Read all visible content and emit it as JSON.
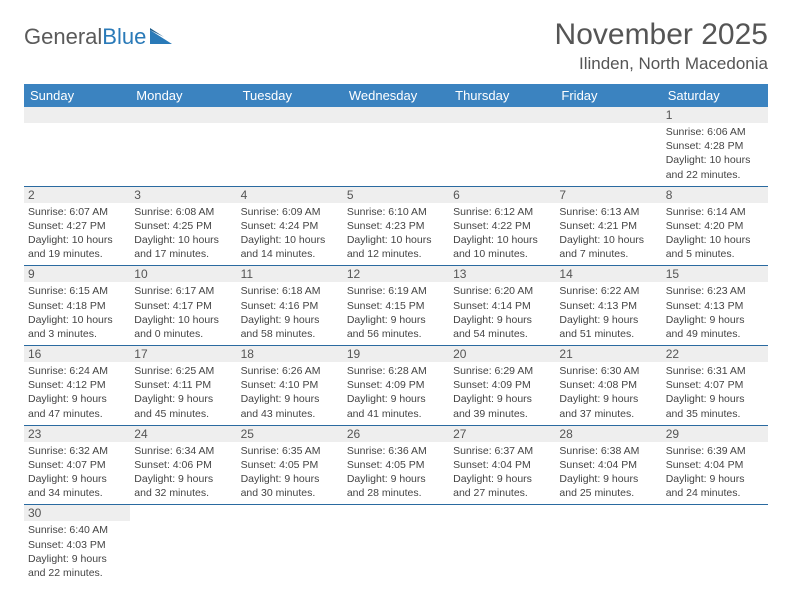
{
  "logo": {
    "part1": "General",
    "part2": "Blue"
  },
  "header": {
    "month_title": "November 2025",
    "location": "Ilinden, North Macedonia"
  },
  "day_headers": [
    "Sunday",
    "Monday",
    "Tuesday",
    "Wednesday",
    "Thursday",
    "Friday",
    "Saturday"
  ],
  "header_bg": "#3b83c0",
  "header_fg": "#ffffff",
  "daynum_bg": "#eeeeee",
  "border_color": "#2a6aa0",
  "weeks": [
    [
      {
        "n": "",
        "sr": "",
        "ss": "",
        "dl": ""
      },
      {
        "n": "",
        "sr": "",
        "ss": "",
        "dl": ""
      },
      {
        "n": "",
        "sr": "",
        "ss": "",
        "dl": ""
      },
      {
        "n": "",
        "sr": "",
        "ss": "",
        "dl": ""
      },
      {
        "n": "",
        "sr": "",
        "ss": "",
        "dl": ""
      },
      {
        "n": "",
        "sr": "",
        "ss": "",
        "dl": ""
      },
      {
        "n": "1",
        "sr": "Sunrise: 6:06 AM",
        "ss": "Sunset: 4:28 PM",
        "dl": "Daylight: 10 hours and 22 minutes."
      }
    ],
    [
      {
        "n": "2",
        "sr": "Sunrise: 6:07 AM",
        "ss": "Sunset: 4:27 PM",
        "dl": "Daylight: 10 hours and 19 minutes."
      },
      {
        "n": "3",
        "sr": "Sunrise: 6:08 AM",
        "ss": "Sunset: 4:25 PM",
        "dl": "Daylight: 10 hours and 17 minutes."
      },
      {
        "n": "4",
        "sr": "Sunrise: 6:09 AM",
        "ss": "Sunset: 4:24 PM",
        "dl": "Daylight: 10 hours and 14 minutes."
      },
      {
        "n": "5",
        "sr": "Sunrise: 6:10 AM",
        "ss": "Sunset: 4:23 PM",
        "dl": "Daylight: 10 hours and 12 minutes."
      },
      {
        "n": "6",
        "sr": "Sunrise: 6:12 AM",
        "ss": "Sunset: 4:22 PM",
        "dl": "Daylight: 10 hours and 10 minutes."
      },
      {
        "n": "7",
        "sr": "Sunrise: 6:13 AM",
        "ss": "Sunset: 4:21 PM",
        "dl": "Daylight: 10 hours and 7 minutes."
      },
      {
        "n": "8",
        "sr": "Sunrise: 6:14 AM",
        "ss": "Sunset: 4:20 PM",
        "dl": "Daylight: 10 hours and 5 minutes."
      }
    ],
    [
      {
        "n": "9",
        "sr": "Sunrise: 6:15 AM",
        "ss": "Sunset: 4:18 PM",
        "dl": "Daylight: 10 hours and 3 minutes."
      },
      {
        "n": "10",
        "sr": "Sunrise: 6:17 AM",
        "ss": "Sunset: 4:17 PM",
        "dl": "Daylight: 10 hours and 0 minutes."
      },
      {
        "n": "11",
        "sr": "Sunrise: 6:18 AM",
        "ss": "Sunset: 4:16 PM",
        "dl": "Daylight: 9 hours and 58 minutes."
      },
      {
        "n": "12",
        "sr": "Sunrise: 6:19 AM",
        "ss": "Sunset: 4:15 PM",
        "dl": "Daylight: 9 hours and 56 minutes."
      },
      {
        "n": "13",
        "sr": "Sunrise: 6:20 AM",
        "ss": "Sunset: 4:14 PM",
        "dl": "Daylight: 9 hours and 54 minutes."
      },
      {
        "n": "14",
        "sr": "Sunrise: 6:22 AM",
        "ss": "Sunset: 4:13 PM",
        "dl": "Daylight: 9 hours and 51 minutes."
      },
      {
        "n": "15",
        "sr": "Sunrise: 6:23 AM",
        "ss": "Sunset: 4:13 PM",
        "dl": "Daylight: 9 hours and 49 minutes."
      }
    ],
    [
      {
        "n": "16",
        "sr": "Sunrise: 6:24 AM",
        "ss": "Sunset: 4:12 PM",
        "dl": "Daylight: 9 hours and 47 minutes."
      },
      {
        "n": "17",
        "sr": "Sunrise: 6:25 AM",
        "ss": "Sunset: 4:11 PM",
        "dl": "Daylight: 9 hours and 45 minutes."
      },
      {
        "n": "18",
        "sr": "Sunrise: 6:26 AM",
        "ss": "Sunset: 4:10 PM",
        "dl": "Daylight: 9 hours and 43 minutes."
      },
      {
        "n": "19",
        "sr": "Sunrise: 6:28 AM",
        "ss": "Sunset: 4:09 PM",
        "dl": "Daylight: 9 hours and 41 minutes."
      },
      {
        "n": "20",
        "sr": "Sunrise: 6:29 AM",
        "ss": "Sunset: 4:09 PM",
        "dl": "Daylight: 9 hours and 39 minutes."
      },
      {
        "n": "21",
        "sr": "Sunrise: 6:30 AM",
        "ss": "Sunset: 4:08 PM",
        "dl": "Daylight: 9 hours and 37 minutes."
      },
      {
        "n": "22",
        "sr": "Sunrise: 6:31 AM",
        "ss": "Sunset: 4:07 PM",
        "dl": "Daylight: 9 hours and 35 minutes."
      }
    ],
    [
      {
        "n": "23",
        "sr": "Sunrise: 6:32 AM",
        "ss": "Sunset: 4:07 PM",
        "dl": "Daylight: 9 hours and 34 minutes."
      },
      {
        "n": "24",
        "sr": "Sunrise: 6:34 AM",
        "ss": "Sunset: 4:06 PM",
        "dl": "Daylight: 9 hours and 32 minutes."
      },
      {
        "n": "25",
        "sr": "Sunrise: 6:35 AM",
        "ss": "Sunset: 4:05 PM",
        "dl": "Daylight: 9 hours and 30 minutes."
      },
      {
        "n": "26",
        "sr": "Sunrise: 6:36 AM",
        "ss": "Sunset: 4:05 PM",
        "dl": "Daylight: 9 hours and 28 minutes."
      },
      {
        "n": "27",
        "sr": "Sunrise: 6:37 AM",
        "ss": "Sunset: 4:04 PM",
        "dl": "Daylight: 9 hours and 27 minutes."
      },
      {
        "n": "28",
        "sr": "Sunrise: 6:38 AM",
        "ss": "Sunset: 4:04 PM",
        "dl": "Daylight: 9 hours and 25 minutes."
      },
      {
        "n": "29",
        "sr": "Sunrise: 6:39 AM",
        "ss": "Sunset: 4:04 PM",
        "dl": "Daylight: 9 hours and 24 minutes."
      }
    ],
    [
      {
        "n": "30",
        "sr": "Sunrise: 6:40 AM",
        "ss": "Sunset: 4:03 PM",
        "dl": "Daylight: 9 hours and 22 minutes."
      },
      {
        "n": "",
        "sr": "",
        "ss": "",
        "dl": ""
      },
      {
        "n": "",
        "sr": "",
        "ss": "",
        "dl": ""
      },
      {
        "n": "",
        "sr": "",
        "ss": "",
        "dl": ""
      },
      {
        "n": "",
        "sr": "",
        "ss": "",
        "dl": ""
      },
      {
        "n": "",
        "sr": "",
        "ss": "",
        "dl": ""
      },
      {
        "n": "",
        "sr": "",
        "ss": "",
        "dl": ""
      }
    ]
  ]
}
